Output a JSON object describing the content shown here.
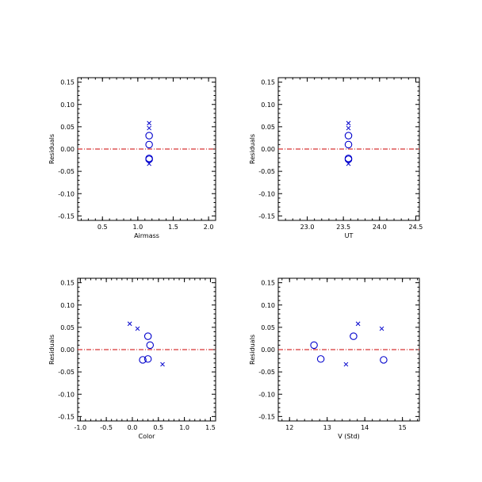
{
  "chart_data": [
    {
      "type": "scatter",
      "xlabel": "Airmass",
      "ylabel": "Residuals",
      "xlim": [
        0.15,
        2.1
      ],
      "ylim": [
        -0.16,
        0.16
      ],
      "x_ticks": [
        "0.5",
        "1.0",
        "1.5",
        "2.0"
      ],
      "y_ticks": [
        "0.15",
        "0.10",
        "0.05",
        "0.00",
        "-0.05",
        "-0.10",
        "-0.15"
      ],
      "reference_line_y": 0.0,
      "series": [
        {
          "marker": "circle",
          "points": [
            [
              1.16,
              0.03
            ],
            [
              1.16,
              0.01
            ],
            [
              1.16,
              -0.021
            ],
            [
              1.16,
              -0.023
            ]
          ]
        },
        {
          "marker": "x",
          "points": [
            [
              1.16,
              0.058
            ],
            [
              1.16,
              0.047
            ],
            [
              1.16,
              -0.033
            ]
          ]
        }
      ]
    },
    {
      "type": "scatter",
      "xlabel": "UT",
      "ylabel": "Residuals",
      "xlim": [
        22.6,
        24.55
      ],
      "ylim": [
        -0.16,
        0.16
      ],
      "x_ticks": [
        "23.0",
        "23.5",
        "24.0",
        "24.5"
      ],
      "y_ticks": [
        "0.15",
        "0.10",
        "0.05",
        "0.00",
        "-0.05",
        "-0.10",
        "-0.15"
      ],
      "reference_line_y": 0.0,
      "series": [
        {
          "marker": "circle",
          "points": [
            [
              23.57,
              0.03
            ],
            [
              23.57,
              0.01
            ],
            [
              23.57,
              -0.021
            ],
            [
              23.57,
              -0.023
            ]
          ]
        },
        {
          "marker": "x",
          "points": [
            [
              23.57,
              0.058
            ],
            [
              23.57,
              0.047
            ],
            [
              23.57,
              -0.033
            ]
          ]
        }
      ]
    },
    {
      "type": "scatter",
      "xlabel": "Color",
      "ylabel": "Residuals",
      "xlim": [
        -1.05,
        1.6
      ],
      "ylim": [
        -0.16,
        0.16
      ],
      "x_ticks": [
        "-1.0",
        "-0.5",
        "0.0",
        "0.5",
        "1.0",
        "1.5"
      ],
      "y_ticks": [
        "0.15",
        "0.10",
        "0.05",
        "0.00",
        "-0.05",
        "-0.10",
        "-0.15"
      ],
      "reference_line_y": 0.0,
      "series": [
        {
          "marker": "circle",
          "points": [
            [
              0.3,
              0.03
            ],
            [
              0.34,
              0.01
            ],
            [
              0.2,
              -0.023
            ],
            [
              0.3,
              -0.021
            ]
          ]
        },
        {
          "marker": "x",
          "points": [
            [
              -0.05,
              0.058
            ],
            [
              0.1,
              0.047
            ],
            [
              0.58,
              -0.033
            ]
          ]
        }
      ]
    },
    {
      "type": "scatter",
      "xlabel": "V (Std)",
      "ylabel": "Residuals",
      "xlim": [
        11.7,
        15.45
      ],
      "ylim": [
        -0.16,
        0.16
      ],
      "x_ticks": [
        "12",
        "13",
        "14",
        "15"
      ],
      "y_ticks": [
        "0.15",
        "0.10",
        "0.05",
        "0.00",
        "-0.05",
        "-0.10",
        "-0.15"
      ],
      "reference_line_y": 0.0,
      "series": [
        {
          "marker": "circle",
          "points": [
            [
              12.65,
              0.01
            ],
            [
              12.83,
              -0.021
            ],
            [
              13.7,
              0.03
            ],
            [
              14.5,
              -0.023
            ]
          ]
        },
        {
          "marker": "x",
          "points": [
            [
              13.82,
              0.058
            ],
            [
              14.45,
              0.047
            ],
            [
              13.5,
              -0.033
            ]
          ]
        }
      ]
    }
  ],
  "colors": {
    "marker": "#0000cc",
    "reference_line": "#cc0000",
    "axis": "#000000"
  }
}
